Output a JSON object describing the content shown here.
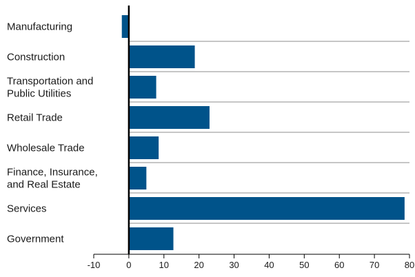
{
  "chart_data": {
    "type": "bar",
    "orientation": "horizontal",
    "categories": [
      "Manufacturing",
      "Construction",
      "Transportation and Public Utilities",
      "Retail Trade",
      "Wholesale Trade",
      "Finance, Insurance, and Real Estate",
      "Services",
      "Government"
    ],
    "category_label_lines": [
      [
        "Manufacturing"
      ],
      [
        "Construction"
      ],
      [
        "Transportation and",
        "Public Utilities"
      ],
      [
        "Retail Trade"
      ],
      [
        "Wholesale Trade"
      ],
      [
        "Finance, Insurance,",
        "and Real Estate"
      ],
      [
        "Services"
      ],
      [
        "Government"
      ]
    ],
    "values": [
      -2,
      18.8,
      7.8,
      23,
      8.5,
      5,
      78.6,
      12.7
    ],
    "xlim": [
      -10,
      80
    ],
    "xticks": [
      -10,
      0,
      10,
      20,
      30,
      40,
      50,
      60,
      70,
      80
    ],
    "title": "",
    "xlabel": "",
    "ylabel": "",
    "grid": false,
    "legend": "none",
    "colors": {
      "bar": "#00538a",
      "separator": "#8c8c8c",
      "axis": "#000000"
    }
  }
}
